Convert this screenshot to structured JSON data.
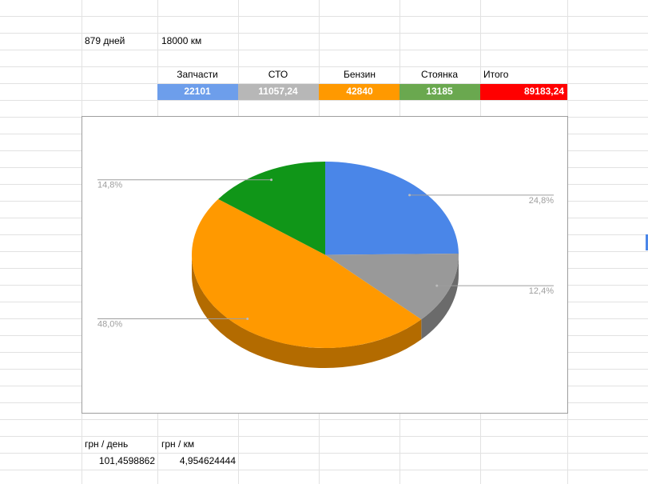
{
  "cells": {
    "days": "879 дней",
    "km": "18000 км",
    "headers": [
      "Запчасти",
      "СТО",
      "Бензин",
      "Стоянка",
      "Итого"
    ],
    "totals": [
      "22101",
      "11057,24",
      "42840",
      "13185",
      "89183,24"
    ],
    "per_day_label": "грн / день",
    "per_km_label": "грн / км",
    "per_day": "101,4598862",
    "per_km": "4,954624444"
  },
  "chart_data": {
    "type": "pie",
    "values": [
      24.8,
      12.4,
      48.0,
      14.8
    ],
    "value_labels": [
      "24,8%",
      "12,4%",
      "48,0%",
      "14,8%"
    ],
    "colors": [
      "#4a86e8",
      "#999999",
      "#ff9900",
      "#109618"
    ]
  }
}
